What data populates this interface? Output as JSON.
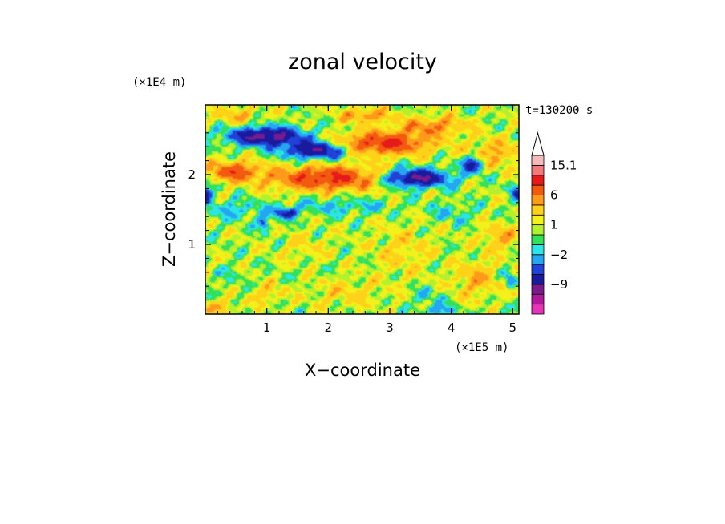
{
  "chart_data": {
    "type": "heatmap",
    "title": "zonal velocity",
    "xlabel": "X−coordinate",
    "ylabel": "Z−coordinate",
    "x_scale_label": "(×1E5 m)",
    "y_scale_label": "(×1E4 m)",
    "time_label": "t=130200 s",
    "xlim": [
      0,
      5.1
    ],
    "ylim": [
      0,
      3.0
    ],
    "x_ticks": [
      {
        "value": 1,
        "label": "1"
      },
      {
        "value": 2,
        "label": "2"
      },
      {
        "value": 3,
        "label": "3"
      },
      {
        "value": 4,
        "label": "4"
      },
      {
        "value": 5,
        "label": "5"
      }
    ],
    "y_ticks": [
      {
        "value": 1,
        "label": "1"
      },
      {
        "value": 2,
        "label": "2"
      }
    ],
    "colorbar": {
      "levels": [
        -15,
        -12,
        -9,
        -6,
        -4,
        -2,
        -1,
        0,
        1,
        2,
        4,
        6,
        9,
        12,
        15.1
      ],
      "colors": [
        "#e633b8",
        "#b3179e",
        "#7a1a8c",
        "#1a1a9e",
        "#2142d6",
        "#24a6f0",
        "#2be6e6",
        "#33e05a",
        "#b3f02e",
        "#f2f21a",
        "#ffd21a",
        "#ff9a1a",
        "#f25a0f",
        "#e61a1a",
        "#f07a7a",
        "#f7baba"
      ],
      "labels": [
        {
          "value": 15.1,
          "label": "15.1"
        },
        {
          "value": 6,
          "label": "6"
        },
        {
          "value": 1,
          "label": "1"
        },
        {
          "value": -2,
          "label": "−2"
        },
        {
          "value": -9,
          "label": "−9"
        }
      ]
    },
    "features": [
      {
        "x": 1.0,
        "z": 2.55,
        "sx": 0.6,
        "sz": 0.13,
        "v": -11
      },
      {
        "x": 1.8,
        "z": 2.35,
        "sx": 0.5,
        "sz": 0.12,
        "v": -10
      },
      {
        "x": 3.4,
        "z": 1.95,
        "sx": 0.55,
        "sz": 0.13,
        "v": -11
      },
      {
        "x": 4.35,
        "z": 2.15,
        "sx": 0.18,
        "sz": 0.12,
        "v": -8
      },
      {
        "x": 0.0,
        "z": 1.7,
        "sx": 0.12,
        "sz": 0.12,
        "v": -8
      },
      {
        "x": 1.3,
        "z": 1.45,
        "sx": 0.2,
        "sz": 0.08,
        "v": -7
      },
      {
        "x": 0.95,
        "z": 1.3,
        "sx": 0.08,
        "sz": 0.1,
        "v": -6
      },
      {
        "x": 5.05,
        "z": 1.75,
        "sx": 0.1,
        "sz": 0.1,
        "v": -6
      },
      {
        "x": 2.0,
        "z": 1.95,
        "sx": 0.95,
        "sz": 0.17,
        "v": 9
      },
      {
        "x": 0.45,
        "z": 2.05,
        "sx": 0.4,
        "sz": 0.14,
        "v": 7
      },
      {
        "x": 2.9,
        "z": 2.45,
        "sx": 0.75,
        "sz": 0.16,
        "v": 9
      },
      {
        "x": 3.7,
        "z": 2.7,
        "sx": 0.55,
        "sz": 0.13,
        "v": 5
      },
      {
        "x": 4.7,
        "z": 2.3,
        "sx": 0.4,
        "sz": 0.2,
        "v": 4
      },
      {
        "x": 2.6,
        "z": 2.85,
        "sx": 0.4,
        "sz": 0.1,
        "v": 5
      },
      {
        "x": 0.5,
        "z": 2.85,
        "sx": 0.4,
        "sz": 0.12,
        "v": 3
      },
      {
        "x": 0.5,
        "z": 1.5,
        "sx": 0.45,
        "sz": 0.14,
        "v": -2.5
      },
      {
        "x": 2.2,
        "z": 1.55,
        "sx": 0.8,
        "sz": 0.12,
        "v": -2.5
      },
      {
        "x": 4.0,
        "z": 1.45,
        "sx": 0.35,
        "sz": 0.15,
        "v": -2
      },
      {
        "x": 0.4,
        "z": 0.55,
        "sx": 0.25,
        "sz": 0.15,
        "v": -1
      },
      {
        "x": 1.6,
        "z": 0.95,
        "sx": 0.4,
        "sz": 0.2,
        "v": 1.5
      },
      {
        "x": 3.2,
        "z": 0.9,
        "sx": 0.5,
        "sz": 0.35,
        "v": 2
      },
      {
        "x": 2.3,
        "z": 0.3,
        "sx": 0.6,
        "sz": 0.2,
        "v": 2
      },
      {
        "x": 3.6,
        "z": 0.25,
        "sx": 0.25,
        "sz": 0.12,
        "v": -2
      },
      {
        "x": 4.4,
        "z": 0.5,
        "sx": 0.35,
        "sz": 0.25,
        "v": 3.5
      },
      {
        "x": 4.8,
        "z": 1.1,
        "sx": 0.3,
        "sz": 0.2,
        "v": 3.5
      },
      {
        "x": 3.8,
        "z": 0.05,
        "sx": 0.25,
        "sz": 0.08,
        "v": -4
      },
      {
        "x": 0.2,
        "z": 0.1,
        "sx": 0.3,
        "sz": 0.1,
        "v": 3
      },
      {
        "x": 1.0,
        "z": 0.3,
        "sx": 0.25,
        "sz": 0.15,
        "v": 2.5
      },
      {
        "x": 4.95,
        "z": 0.5,
        "sx": 0.08,
        "sz": 0.1,
        "v": -5
      }
    ]
  }
}
